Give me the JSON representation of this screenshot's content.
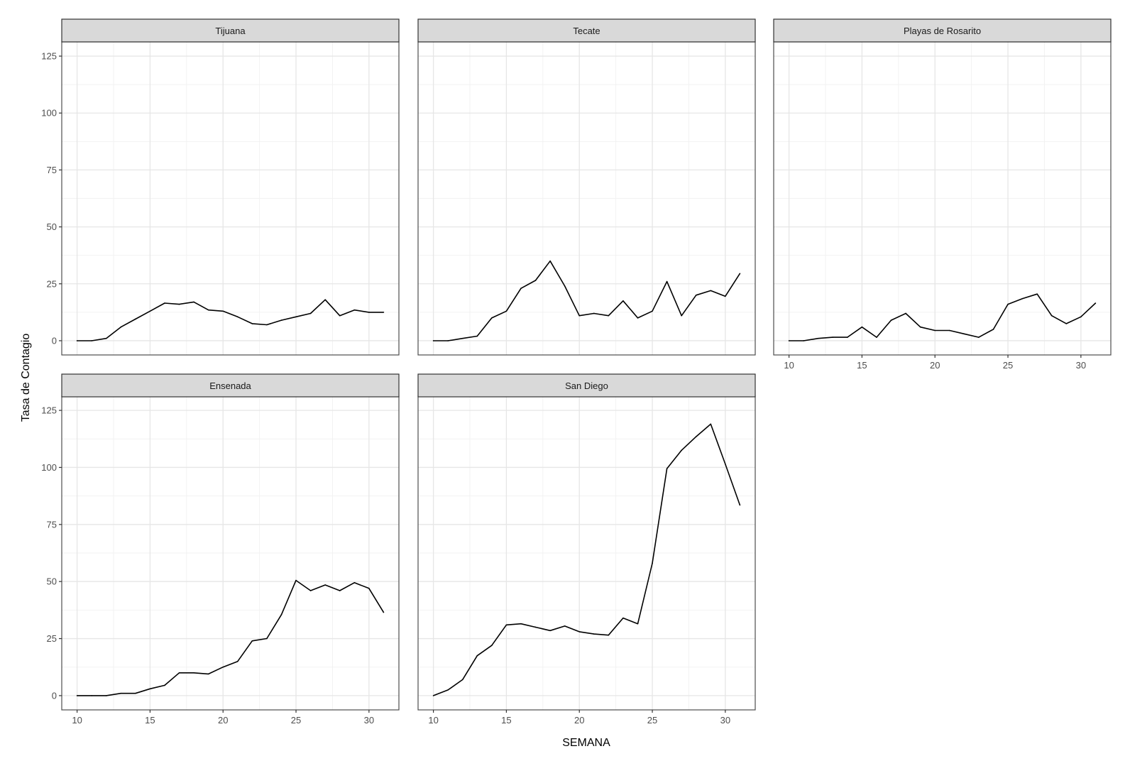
{
  "labels": {
    "xlabel": "SEMANA",
    "ylabel": "Tasa de Contagio"
  },
  "colors": {
    "strip_fill": "#d9d9d9",
    "strip_border": "#333333",
    "panel_border": "#4d4d4d",
    "grid_major": "#e6e6e6",
    "grid_minor": "#f2f2f2",
    "line": "#000000"
  },
  "chart_data": [
    {
      "type": "line",
      "title": "Tijuana",
      "xlim": [
        10,
        31
      ],
      "ylim": [
        0,
        125
      ],
      "x_ticks": [
        10,
        15,
        20,
        25,
        30
      ],
      "y_ticks": [
        0,
        25,
        50,
        75,
        100,
        125
      ],
      "x": [
        10,
        11,
        12,
        13,
        14,
        15,
        16,
        17,
        18,
        19,
        20,
        21,
        22,
        23,
        24,
        25,
        26,
        27,
        28,
        29,
        30,
        31
      ],
      "values": [
        0,
        0,
        1,
        6,
        9.5,
        13,
        16.5,
        16,
        17,
        13.5,
        13,
        10.5,
        7.5,
        7,
        9,
        10.5,
        12,
        18,
        11,
        13.5,
        12.5,
        12.5
      ]
    },
    {
      "type": "line",
      "title": "Tecate",
      "xlim": [
        10,
        31
      ],
      "ylim": [
        0,
        125
      ],
      "x_ticks": [
        10,
        15,
        20,
        25,
        30
      ],
      "y_ticks": [
        0,
        25,
        50,
        75,
        100,
        125
      ],
      "x": [
        10,
        11,
        12,
        13,
        14,
        15,
        16,
        17,
        18,
        19,
        20,
        21,
        22,
        23,
        24,
        25,
        26,
        27,
        28,
        29,
        30,
        31
      ],
      "values": [
        0,
        0,
        1,
        2,
        10,
        13,
        23,
        26.5,
        35,
        24,
        11,
        12,
        11,
        17.5,
        10,
        13,
        26,
        11,
        20,
        22,
        19.5,
        29.5
      ]
    },
    {
      "type": "line",
      "title": "Playas de Rosarito",
      "xlim": [
        10,
        31
      ],
      "ylim": [
        0,
        125
      ],
      "x_ticks": [
        10,
        15,
        20,
        25,
        30
      ],
      "y_ticks": [
        0,
        25,
        50,
        75,
        100,
        125
      ],
      "x": [
        10,
        11,
        12,
        13,
        14,
        15,
        16,
        17,
        18,
        19,
        20,
        21,
        22,
        23,
        24,
        25,
        26,
        27,
        28,
        29,
        30,
        31
      ],
      "values": [
        0,
        0,
        1,
        1.5,
        1.5,
        6,
        1.5,
        9,
        12,
        6,
        4.5,
        4.5,
        3,
        1.5,
        5,
        16,
        18.5,
        20.5,
        11,
        7.5,
        10.5,
        16.5
      ]
    },
    {
      "type": "line",
      "title": "Ensenada",
      "xlim": [
        10,
        31
      ],
      "ylim": [
        0,
        125
      ],
      "x_ticks": [
        10,
        15,
        20,
        25,
        30
      ],
      "y_ticks": [
        0,
        25,
        50,
        75,
        100,
        125
      ],
      "x": [
        10,
        11,
        12,
        13,
        14,
        15,
        16,
        17,
        18,
        19,
        20,
        21,
        22,
        23,
        24,
        25,
        26,
        27,
        28,
        29,
        30,
        31
      ],
      "values": [
        0,
        0,
        0,
        1,
        1,
        3,
        4.5,
        10,
        10,
        9.5,
        12.5,
        15,
        24,
        25,
        35.5,
        50.5,
        46,
        48.5,
        46,
        49.5,
        47,
        36.5
      ]
    },
    {
      "type": "line",
      "title": "San Diego",
      "xlim": [
        10,
        31
      ],
      "ylim": [
        0,
        125
      ],
      "x_ticks": [
        10,
        15,
        20,
        25,
        30
      ],
      "y_ticks": [
        0,
        25,
        50,
        75,
        100,
        125
      ],
      "x": [
        10,
        11,
        12,
        13,
        14,
        15,
        16,
        17,
        18,
        19,
        20,
        21,
        22,
        23,
        24,
        25,
        26,
        27,
        28,
        29,
        30,
        31
      ],
      "values": [
        0,
        2.5,
        7,
        17.5,
        22,
        31,
        31.5,
        30,
        28.5,
        30.5,
        28,
        27,
        26.5,
        34,
        31.5,
        58,
        99.5,
        107.5,
        113.5,
        119,
        101.5,
        83.5
      ]
    }
  ]
}
